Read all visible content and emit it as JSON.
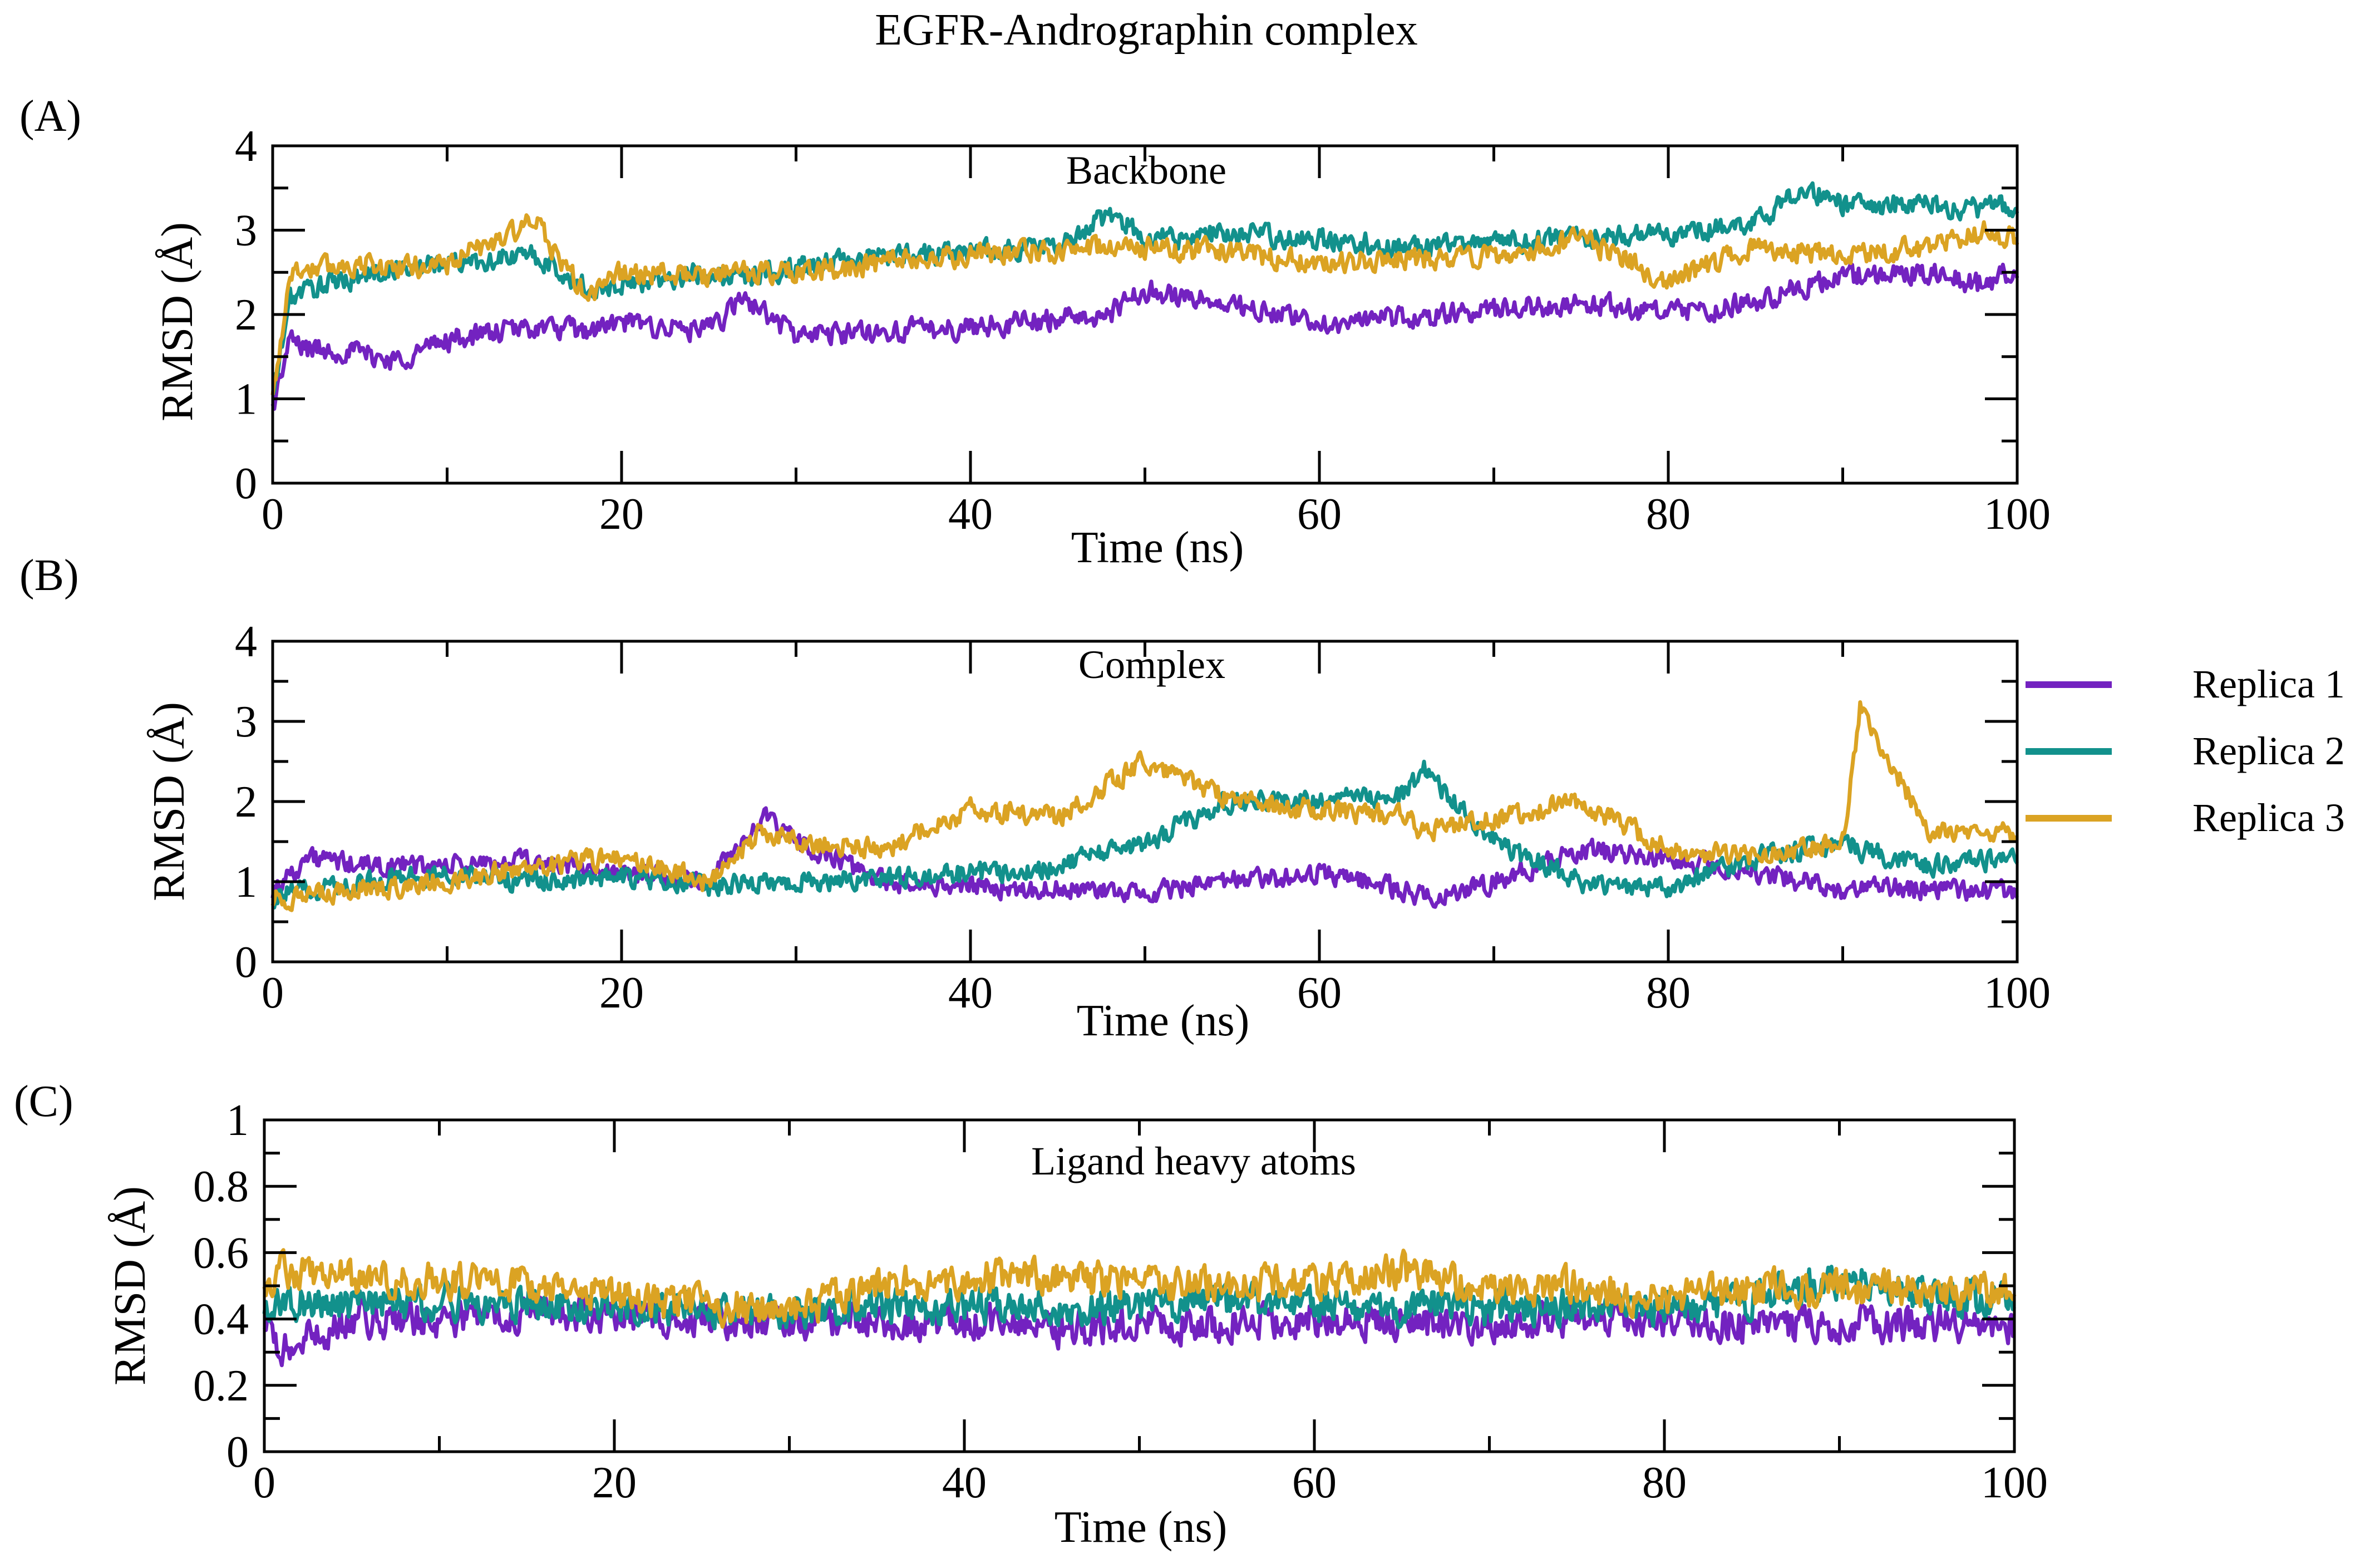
{
  "title": "EGFR-Andrographin complex",
  "colors": {
    "replica1": "#7322c0",
    "replica2": "#12918c",
    "replica3": "#dba323",
    "axes": "#000000"
  },
  "legend": {
    "items": [
      {
        "label": "Replica 1",
        "color": "#7322c0"
      },
      {
        "label": "Replica 2",
        "color": "#12918c"
      },
      {
        "label": "Replica 3",
        "color": "#dba323"
      }
    ]
  },
  "chart_data": [
    {
      "panel_label": "(A)",
      "type": "line",
      "inner_title": "Backbone",
      "xlabel": "Time (ns)",
      "ylabel": "RMSD (Å)",
      "xlim": [
        0,
        100
      ],
      "ylim": [
        0,
        4
      ],
      "xticks": [
        0,
        20,
        40,
        60,
        80,
        100
      ],
      "yticks": [
        0,
        1,
        2,
        3,
        4
      ],
      "tick_labels_x": [
        "0",
        "20",
        "40",
        "60",
        "80",
        "100"
      ],
      "tick_labels_y": [
        "0",
        "1",
        "2",
        "3",
        "4"
      ],
      "x": [
        0,
        1,
        2,
        5,
        7,
        10,
        15,
        18,
        20,
        25,
        27,
        30,
        35,
        40,
        45,
        48,
        50,
        55,
        60,
        65,
        70,
        75,
        80,
        85,
        88,
        90,
        95,
        98,
        100
      ],
      "series": [
        {
          "name": "Replica 1",
          "values": [
            0.9,
            1.7,
            1.6,
            1.55,
            1.45,
            1.7,
            1.85,
            1.8,
            1.9,
            1.8,
            2.2,
            1.75,
            1.8,
            1.85,
            1.95,
            2.0,
            2.3,
            2.1,
            1.9,
            1.95,
            2.05,
            2.15,
            2.0,
            2.15,
            2.35,
            2.45,
            2.5,
            2.35,
            2.55
          ]
        },
        {
          "name": "Replica 2",
          "values": [
            1.0,
            2.2,
            2.3,
            2.45,
            2.55,
            2.6,
            2.7,
            2.3,
            2.35,
            2.5,
            2.45,
            2.55,
            2.7,
            2.75,
            2.8,
            3.2,
            2.9,
            2.95,
            2.9,
            2.8,
            2.85,
            2.9,
            2.95,
            3.1,
            3.5,
            3.3,
            3.3,
            3.25,
            3.3
          ]
        },
        {
          "name": "Replica 3",
          "values": [
            1.0,
            2.5,
            2.55,
            2.6,
            2.55,
            2.6,
            3.1,
            2.2,
            2.5,
            2.45,
            2.5,
            2.5,
            2.6,
            2.7,
            2.75,
            2.8,
            2.8,
            2.75,
            2.6,
            2.65,
            2.7,
            2.9,
            2.4,
            2.8,
            2.75,
            2.7,
            2.8,
            3.0,
            2.9
          ]
        }
      ]
    },
    {
      "panel_label": "(B)",
      "type": "line",
      "inner_title": "Complex",
      "xlabel": "Time (ns)",
      "ylabel": "RMSD (Å)",
      "xlim": [
        0,
        100
      ],
      "ylim": [
        0,
        4
      ],
      "xticks": [
        0,
        20,
        40,
        60,
        80,
        100
      ],
      "yticks": [
        0,
        1,
        2,
        3,
        4
      ],
      "tick_labels_x": [
        "0",
        "20",
        "40",
        "60",
        "80",
        "100"
      ],
      "tick_labels_y": [
        "0",
        "1",
        "2",
        "3",
        "4"
      ],
      "x": [
        0,
        2,
        5,
        10,
        15,
        20,
        25,
        28,
        30,
        35,
        40,
        45,
        50,
        55,
        60,
        65,
        66,
        70,
        75,
        80,
        85,
        90,
        91,
        95,
        100
      ],
      "series": [
        {
          "name": "Replica 1",
          "values": [
            0.9,
            1.3,
            1.2,
            1.2,
            1.25,
            1.1,
            1.0,
            1.8,
            1.5,
            1.0,
            0.95,
            0.9,
            0.85,
            1.0,
            1.1,
            0.9,
            0.8,
            1.0,
            1.4,
            1.3,
            1.1,
            0.9,
            0.95,
            0.9,
            0.9
          ]
        },
        {
          "name": "Replica 2",
          "values": [
            0.8,
            0.9,
            1.0,
            1.1,
            1.0,
            1.05,
            0.95,
            1.0,
            1.0,
            1.05,
            1.1,
            1.2,
            1.5,
            2.0,
            2.0,
            2.1,
            2.4,
            1.5,
            1.0,
            0.9,
            1.3,
            1.5,
            1.4,
            1.2,
            1.3
          ]
        },
        {
          "name": "Replica 3",
          "values": [
            0.8,
            0.8,
            0.9,
            1.0,
            1.2,
            1.3,
            1.0,
            1.6,
            1.5,
            1.4,
            1.9,
            1.8,
            2.5,
            2.0,
            1.9,
            1.8,
            1.6,
            1.8,
            2.0,
            1.4,
            1.3,
            1.5,
            3.2,
            1.6,
            1.6
          ]
        }
      ]
    },
    {
      "panel_label": "(C)",
      "type": "line",
      "inner_title": "Ligand heavy atoms",
      "xlabel": "Time (ns)",
      "ylabel": "RMSD (Å)",
      "xlim": [
        0,
        100
      ],
      "ylim": [
        0,
        1
      ],
      "xticks": [
        0,
        20,
        40,
        60,
        80,
        100
      ],
      "yticks": [
        0,
        0.2,
        0.4,
        0.6,
        0.8,
        1
      ],
      "tick_labels_x": [
        "0",
        "20",
        "40",
        "60",
        "80",
        "100"
      ],
      "tick_labels_y": [
        "0",
        "0.2",
        "0.4",
        "0.6",
        "0.8",
        "1"
      ],
      "x": [
        0,
        1,
        5,
        10,
        15,
        20,
        25,
        30,
        35,
        40,
        45,
        50,
        55,
        60,
        65,
        70,
        75,
        80,
        85,
        90,
        95,
        100
      ],
      "series": [
        {
          "name": "Replica 1",
          "values": [
            0.38,
            0.3,
            0.4,
            0.4,
            0.42,
            0.41,
            0.4,
            0.4,
            0.39,
            0.4,
            0.37,
            0.38,
            0.39,
            0.4,
            0.39,
            0.38,
            0.41,
            0.38,
            0.39,
            0.38,
            0.39,
            0.38
          ]
        },
        {
          "name": "Replica 2",
          "values": [
            0.42,
            0.45,
            0.44,
            0.45,
            0.45,
            0.44,
            0.43,
            0.41,
            0.44,
            0.44,
            0.44,
            0.44,
            0.45,
            0.44,
            0.44,
            0.43,
            0.44,
            0.42,
            0.46,
            0.52,
            0.47,
            0.46
          ]
        },
        {
          "name": "Replica 3",
          "values": [
            0.5,
            0.55,
            0.52,
            0.52,
            0.5,
            0.47,
            0.44,
            0.42,
            0.5,
            0.52,
            0.53,
            0.51,
            0.5,
            0.51,
            0.55,
            0.49,
            0.5,
            0.46,
            0.49,
            0.5,
            0.48,
            0.49
          ]
        }
      ]
    }
  ]
}
